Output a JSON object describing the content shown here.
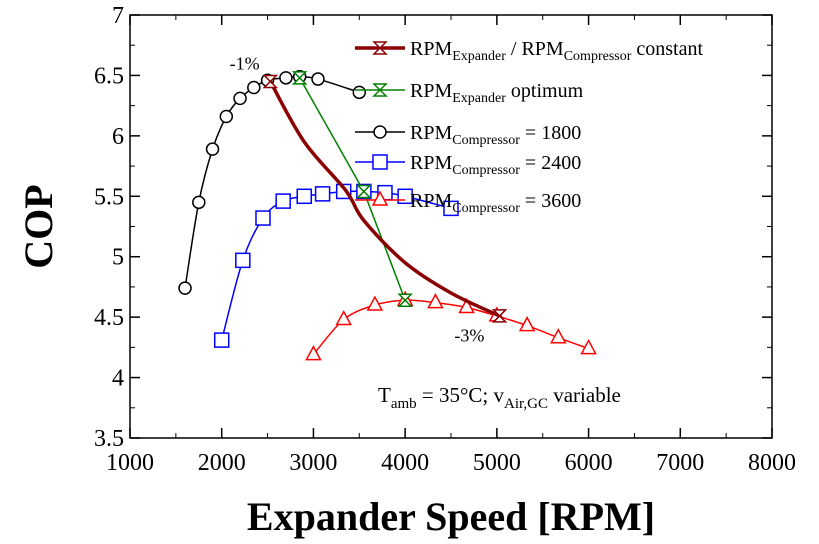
{
  "chart_data": {
    "type": "line",
    "xlabel": "Expander Speed [RPM]",
    "ylabel": "COP",
    "xlim": [
      1000,
      8000
    ],
    "ylim": [
      3.5,
      7
    ],
    "xticks": [
      "1000",
      "2000",
      "3000",
      "4000",
      "5000",
      "6000",
      "7000",
      "8000"
    ],
    "yticks": [
      "3.5",
      "4",
      "4.5",
      "5",
      "5.5",
      "6",
      "6.5",
      "7"
    ],
    "grid": false,
    "legend_position": "top-right",
    "series": [
      {
        "name": "RPM_Expander / RPM_Compressor constant",
        "legend_main": "RPM",
        "legend_sub": "Expander",
        "legend_mid": " / RPM",
        "legend_sub2": "Compressor",
        "legend_tail": " constant",
        "color": "#8b0000",
        "marker": "hourglass",
        "markers_at": [
          0,
          5
        ],
        "x": [
          2530,
          2900,
          3350,
          3550,
          4000,
          4500,
          5030
        ],
        "y": [
          6.45,
          5.95,
          5.55,
          5.3,
          4.95,
          4.7,
          4.51
        ]
      },
      {
        "name": "RPM_Expander optimum",
        "legend_main": "RPM",
        "legend_sub": "Expander",
        "legend_tail": " optimum",
        "color": "#008000",
        "marker": "hourglass",
        "x": [
          2850,
          3550,
          4000
        ],
        "y": [
          6.48,
          5.54,
          4.64
        ]
      },
      {
        "name": "RPM_Compressor = 1800",
        "legend_main": "RPM",
        "legend_sub": "Compressor",
        "legend_tail": " = 1800",
        "color": "#000000",
        "marker": "circle",
        "x": [
          1600,
          1750,
          1900,
          2050,
          2200,
          2350,
          2500,
          2700,
          2850,
          3050,
          3500
        ],
        "y": [
          4.74,
          5.45,
          5.89,
          6.16,
          6.31,
          6.4,
          6.46,
          6.48,
          6.49,
          6.47,
          6.36
        ]
      },
      {
        "name": "RPM_Compressor = 2400",
        "legend_main": "RPM",
        "legend_sub": "Compressor",
        "legend_tail": " = 2400",
        "color": "#0000ff",
        "marker": "square",
        "x": [
          2000,
          2230,
          2450,
          2670,
          2900,
          3100,
          3330,
          3550,
          3780,
          4000,
          4500
        ],
        "y": [
          4.31,
          4.97,
          5.32,
          5.46,
          5.5,
          5.52,
          5.54,
          5.54,
          5.53,
          5.5,
          5.4
        ]
      },
      {
        "name": "RPM_Compressor = 3600",
        "legend_main": "RPM",
        "legend_sub": "Compressor",
        "legend_tail": " = 3600",
        "color": "#ff0000",
        "marker": "triangle",
        "x": [
          3000,
          3330,
          3670,
          4000,
          4330,
          4670,
          5000,
          5330,
          5670,
          6000
        ],
        "y": [
          4.19,
          4.48,
          4.6,
          4.64,
          4.62,
          4.58,
          4.51,
          4.43,
          4.33,
          4.24
        ]
      }
    ],
    "annotations": [
      {
        "text": "-1%",
        "x": 2250,
        "y": 6.55
      },
      {
        "text": "-3%",
        "x": 4700,
        "y": 4.3
      }
    ],
    "note": {
      "t": "T",
      "t_sub": "amb",
      "t_rest": " = 35°C;   v",
      "v_sub": "Air,GC",
      "v_rest": " variable"
    }
  }
}
